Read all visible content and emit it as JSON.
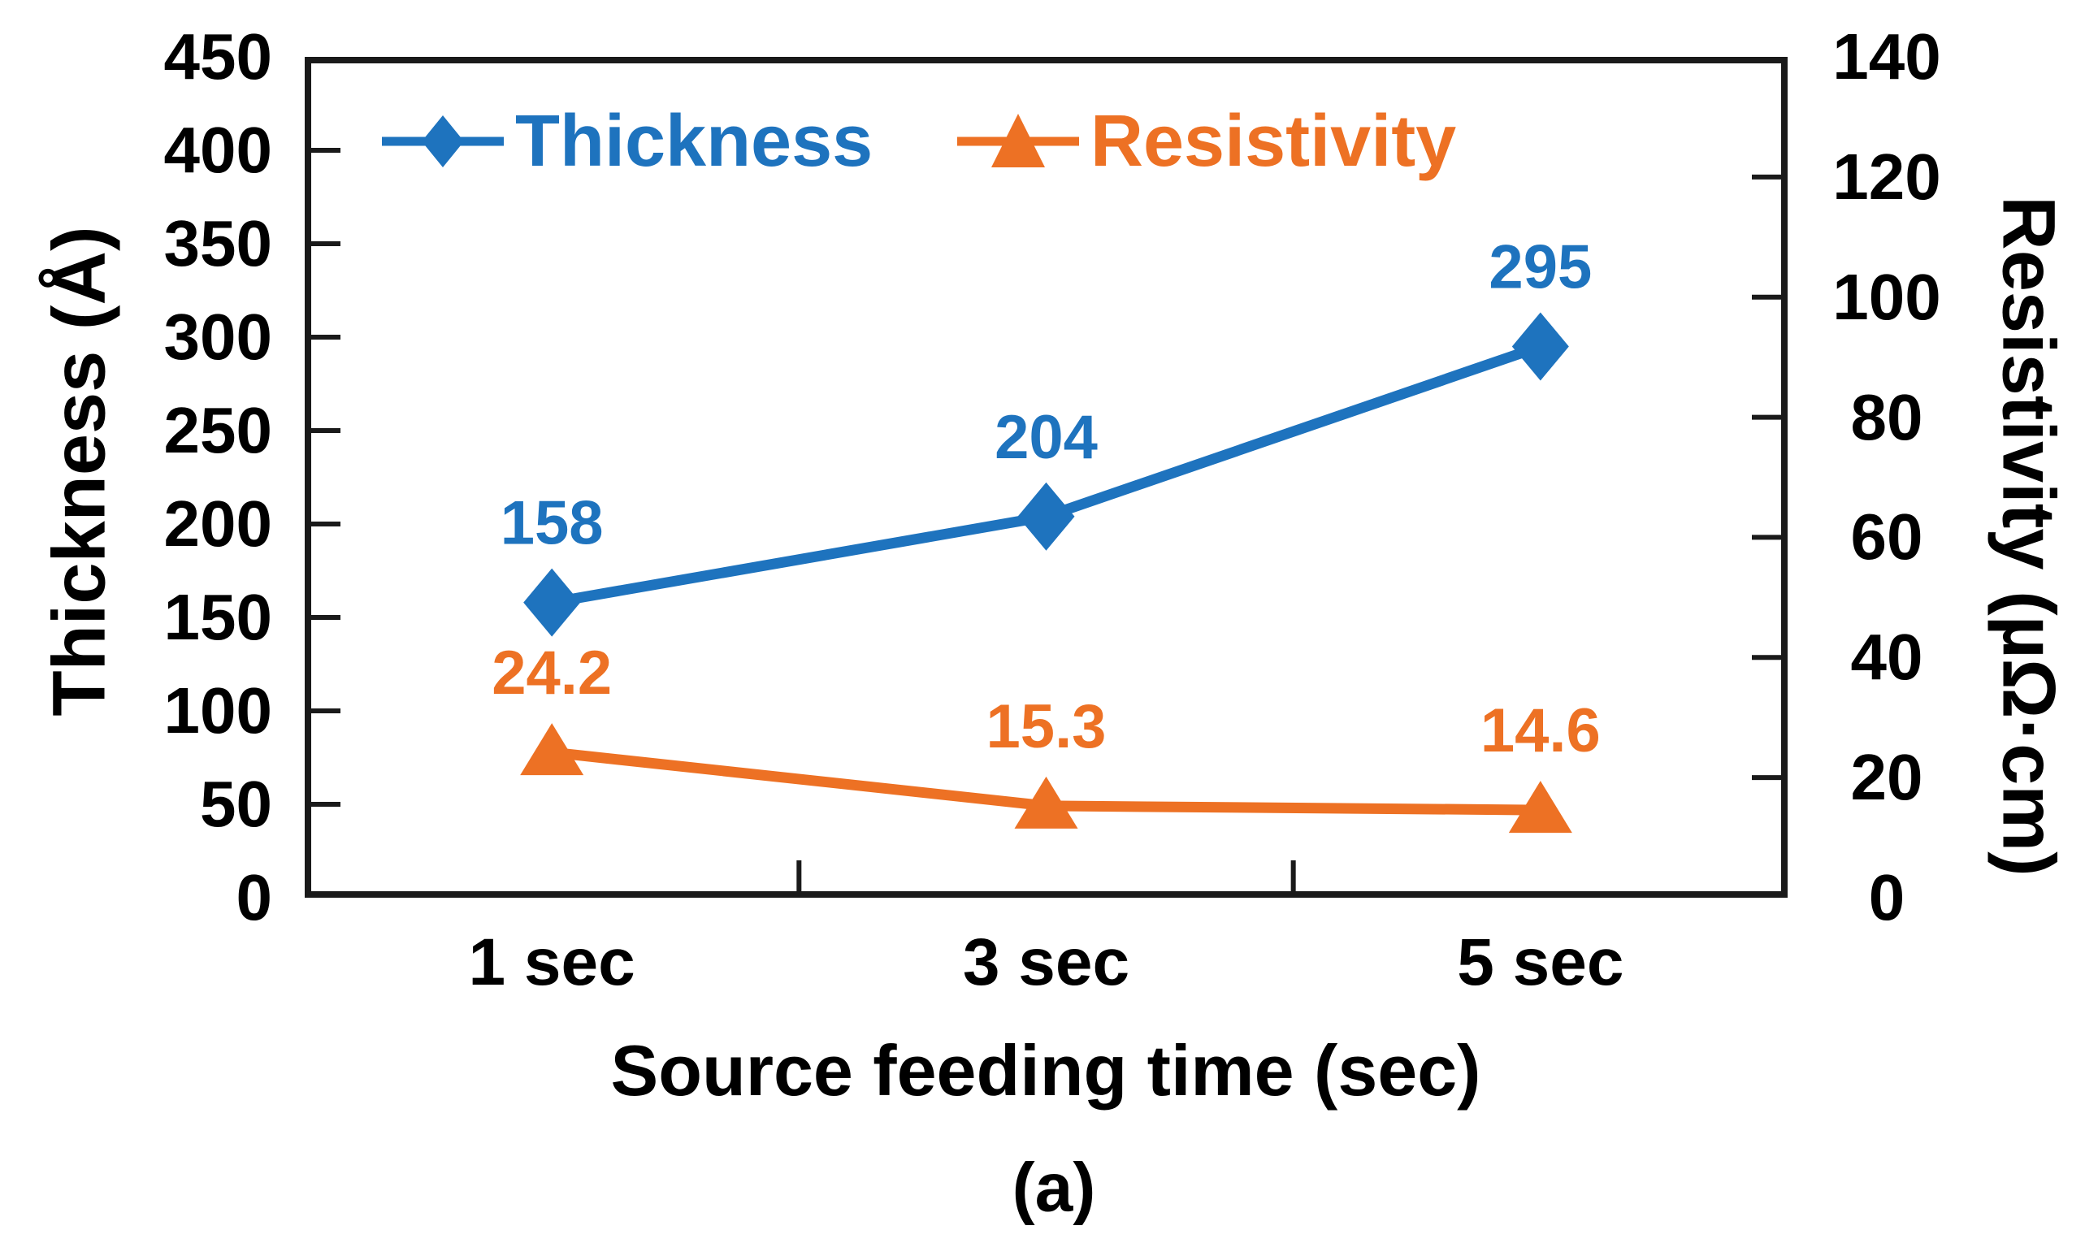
{
  "figure": {
    "caption": "(a)",
    "background": "#ffffff"
  },
  "chart_data": {
    "type": "line",
    "categories": [
      "1 sec",
      "3 sec",
      "5 sec"
    ],
    "x_axis": {
      "title": "Source feeding time (sec)"
    },
    "y_left": {
      "title": "Thickness (Å)",
      "min": 0,
      "max": 450,
      "tick_step": 50,
      "ticks": [
        450,
        400,
        350,
        300,
        250,
        200,
        150,
        100,
        50,
        0
      ]
    },
    "y_right": {
      "title": "Resistivity (µΩ·cm)",
      "min": 0,
      "max": 140,
      "tick_step": 20,
      "ticks": [
        140,
        120,
        100,
        80,
        60,
        40,
        20,
        0
      ]
    },
    "series": [
      {
        "name": "Thickness",
        "axis": "left",
        "color": "#1E73BE",
        "marker": "diamond",
        "values": [
          158,
          204,
          295
        ],
        "labels": [
          "158",
          "204",
          "295"
        ]
      },
      {
        "name": "Resistivity",
        "axis": "right",
        "color": "#ED7124",
        "marker": "triangle",
        "values": [
          24.2,
          15.3,
          14.6
        ],
        "labels": [
          "24.2",
          "15.3",
          "14.6"
        ]
      }
    ],
    "legend": {
      "position": "top-inside",
      "entries": [
        "Thickness",
        "Resistivity"
      ]
    },
    "grid": false,
    "frame_color": "#1a1a1a"
  }
}
